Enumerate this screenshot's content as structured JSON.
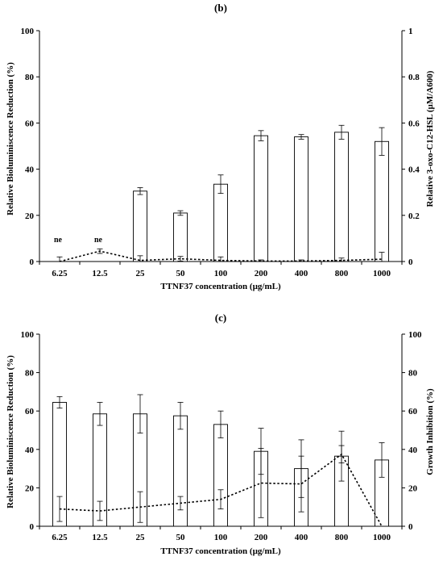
{
  "chart_data": [
    {
      "panel_label": "(b)",
      "type": "bar",
      "categories": [
        "6.25",
        "12.5",
        "25",
        "50",
        "100",
        "200",
        "400",
        "800",
        "1000"
      ],
      "xlabel": "TTNF37 concentration (µg/mL)",
      "ylabel": "Relative Bioluminiscence Reduction (%)",
      "ylabel_right": "Relative 3-oxo-C12-HSL (µM/A600)",
      "ylim": [
        0,
        100
      ],
      "ylim_right": [
        0,
        1
      ],
      "yticks": [
        "0",
        "20",
        "40",
        "60",
        "80",
        "100"
      ],
      "yticks_right": [
        "0",
        "0.2",
        "0.4",
        "0.6",
        "0.8",
        "1"
      ],
      "grid": false,
      "series": [
        {
          "kind": "bar",
          "axis": "left",
          "values": [
            0,
            0,
            30.5,
            21,
            33.5,
            54.5,
            54,
            56,
            52
          ],
          "errors": [
            0,
            0,
            1.5,
            1,
            4,
            2.2,
            1,
            3,
            6
          ]
        },
        {
          "kind": "line",
          "axis": "right",
          "style": "dotted",
          "values": [
            0.0,
            0.045,
            0.005,
            0.012,
            0.005,
            0.002,
            0.002,
            0.005,
            0.01
          ],
          "errors": [
            0.02,
            0.01,
            0.02,
            0.01,
            0.015,
            0.005,
            0.005,
            0.01,
            0.03
          ]
        }
      ],
      "annotations": [
        {
          "category": "6.25",
          "text": "ne"
        },
        {
          "category": "12.5",
          "text": "ne"
        }
      ]
    },
    {
      "panel_label": "(c)",
      "type": "bar",
      "categories": [
        "6.25",
        "12.5",
        "25",
        "50",
        "100",
        "200",
        "400",
        "800",
        "1000"
      ],
      "xlabel": "TTNF37 concentration (µg/mL)",
      "ylabel": "Relative Bioluminiscence Reduction (%)",
      "ylabel_right": "Growth Inhibition (%)",
      "ylim": [
        0,
        100
      ],
      "ylim_right": [
        0,
        100
      ],
      "yticks": [
        "0",
        "20",
        "40",
        "60",
        "80",
        "100"
      ],
      "yticks_right": [
        "0",
        "20",
        "40",
        "60",
        "80",
        "100"
      ],
      "grid": false,
      "series": [
        {
          "kind": "bar",
          "axis": "left",
          "values": [
            64.5,
            58.5,
            58.5,
            57.5,
            53,
            39,
            30,
            36.5,
            34.5
          ],
          "errors": [
            3,
            6,
            10,
            7,
            7,
            12,
            15,
            13,
            9
          ]
        },
        {
          "kind": "line",
          "axis": "right",
          "style": "dotted",
          "values": [
            9,
            8,
            10,
            12,
            14,
            22.5,
            22,
            37.5,
            -5
          ],
          "errors": [
            6.5,
            5,
            8,
            3.5,
            5,
            18,
            14.5,
            4.5,
            0
          ]
        }
      ],
      "annotations": []
    }
  ]
}
